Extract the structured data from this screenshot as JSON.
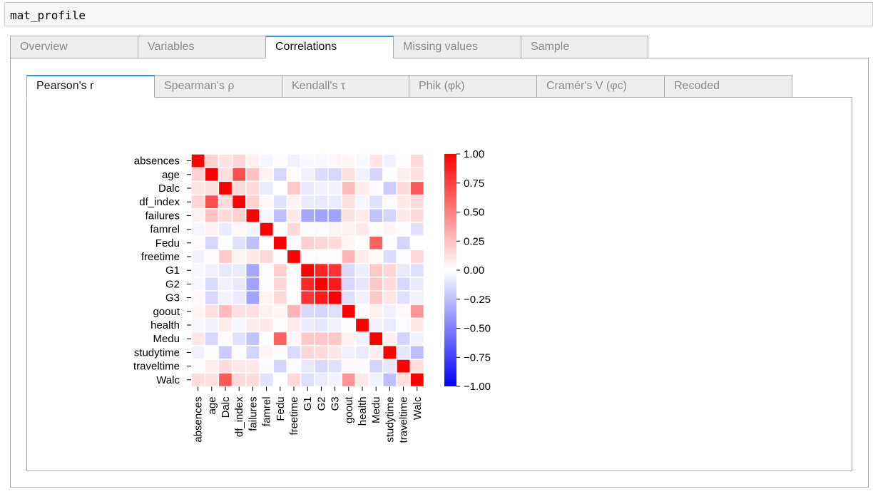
{
  "code_cell": {
    "text": "mat_profile"
  },
  "outer_tabs": [
    {
      "label": "Overview",
      "active": false
    },
    {
      "label": "Variables",
      "active": false
    },
    {
      "label": "Correlations",
      "active": true
    },
    {
      "label": "Missing values",
      "active": false
    },
    {
      "label": "Sample",
      "active": false
    }
  ],
  "inner_tabs": [
    {
      "label": "Pearson's r",
      "active": true
    },
    {
      "label": "Spearman's ρ",
      "active": false
    },
    {
      "label": "Kendall's τ",
      "active": false
    },
    {
      "label": "Phik (φk)",
      "active": false
    },
    {
      "label": "Cramér's V (φc)",
      "active": false
    },
    {
      "label": "Recoded",
      "active": false
    }
  ],
  "chart_data": {
    "type": "heatmap",
    "title": "",
    "variables": [
      "absences",
      "age",
      "Dalc",
      "df_index",
      "failures",
      "famrel",
      "Fedu",
      "freetime",
      "G1",
      "G2",
      "G3",
      "goout",
      "health",
      "Medu",
      "studytime",
      "traveltime",
      "Walc"
    ],
    "colorbar": {
      "ticks": [
        1.0,
        0.75,
        0.5,
        0.25,
        0.0,
        -0.25,
        -0.5,
        -0.75,
        -1.0
      ],
      "tick_labels": [
        "1.00",
        "0.75",
        "0.50",
        "0.25",
        "0.00",
        "−0.25",
        "−0.50",
        "−0.75",
        "−1.00"
      ],
      "range": [
        -1,
        1
      ],
      "colormap": "bwr",
      "low_color": "#0000ff",
      "mid_color": "#ffffff",
      "high_color": "#ff0000"
    },
    "grid_lines": "white",
    "values": [
      [
        1.0,
        0.18,
        0.11,
        0.17,
        0.06,
        -0.04,
        0.02,
        -0.06,
        -0.03,
        -0.03,
        0.03,
        0.04,
        -0.03,
        0.1,
        -0.06,
        -0.01,
        0.14
      ],
      [
        0.18,
        1.0,
        0.13,
        0.7,
        0.24,
        0.05,
        -0.16,
        0.02,
        -0.06,
        -0.14,
        -0.16,
        0.13,
        -0.06,
        -0.16,
        -0.0,
        0.07,
        0.12
      ],
      [
        0.11,
        0.13,
        1.0,
        0.14,
        0.14,
        -0.08,
        0.0,
        0.21,
        -0.09,
        -0.06,
        -0.05,
        0.27,
        0.08,
        -0.02,
        -0.2,
        0.14,
        0.65
      ],
      [
        0.17,
        0.7,
        0.14,
        1.0,
        0.18,
        0.03,
        -0.12,
        0.05,
        -0.08,
        -0.09,
        -0.08,
        0.12,
        -0.04,
        -0.12,
        -0.02,
        0.09,
        0.14
      ],
      [
        0.06,
        0.24,
        0.14,
        0.18,
        1.0,
        -0.04,
        -0.25,
        0.09,
        -0.35,
        -0.36,
        -0.36,
        0.12,
        0.08,
        -0.24,
        -0.17,
        0.09,
        0.14
      ],
      [
        -0.04,
        0.05,
        -0.08,
        0.03,
        -0.04,
        1.0,
        -0.0,
        0.15,
        0.02,
        -0.02,
        0.05,
        0.06,
        0.09,
        -0.0,
        0.04,
        -0.02,
        -0.11
      ],
      [
        0.02,
        -0.16,
        0.0,
        -0.12,
        -0.25,
        -0.0,
        1.0,
        -0.01,
        0.19,
        0.16,
        0.15,
        0.04,
        0.01,
        0.62,
        -0.01,
        -0.17,
        -0.0
      ],
      [
        -0.06,
        0.02,
        0.21,
        0.05,
        0.09,
        0.15,
        -0.01,
        1.0,
        0.01,
        -0.01,
        0.01,
        0.29,
        0.08,
        0.03,
        -0.14,
        -0.02,
        0.15
      ],
      [
        -0.03,
        -0.06,
        -0.09,
        -0.08,
        -0.35,
        0.02,
        0.19,
        0.01,
        1.0,
        0.85,
        0.8,
        -0.15,
        -0.07,
        0.21,
        0.16,
        -0.09,
        -0.13
      ],
      [
        -0.03,
        -0.14,
        -0.06,
        -0.09,
        -0.36,
        -0.02,
        0.16,
        -0.01,
        0.85,
        1.0,
        0.9,
        -0.16,
        -0.1,
        0.22,
        0.14,
        -0.15,
        -0.08
      ],
      [
        0.03,
        -0.16,
        -0.05,
        -0.08,
        -0.36,
        0.05,
        0.15,
        0.01,
        0.8,
        0.9,
        1.0,
        -0.13,
        -0.06,
        0.22,
        0.1,
        -0.12,
        -0.05
      ],
      [
        0.04,
        0.13,
        0.27,
        0.12,
        0.12,
        0.06,
        0.04,
        0.29,
        -0.15,
        -0.16,
        -0.13,
        1.0,
        -0.01,
        0.06,
        -0.06,
        0.03,
        0.42
      ],
      [
        -0.03,
        -0.06,
        0.08,
        -0.04,
        0.08,
        0.09,
        0.01,
        0.08,
        -0.07,
        -0.1,
        -0.06,
        -0.01,
        1.0,
        -0.05,
        -0.08,
        -0.02,
        0.09
      ],
      [
        0.1,
        -0.16,
        -0.02,
        -0.12,
        -0.24,
        -0.0,
        0.62,
        0.03,
        0.21,
        0.22,
        0.22,
        0.06,
        -0.05,
        1.0,
        0.06,
        -0.17,
        -0.05
      ],
      [
        -0.06,
        -0.0,
        -0.2,
        -0.02,
        -0.17,
        0.04,
        -0.01,
        -0.14,
        0.16,
        0.14,
        0.1,
        -0.06,
        -0.08,
        0.06,
        1.0,
        -0.1,
        -0.25
      ],
      [
        -0.01,
        0.07,
        0.14,
        0.09,
        0.09,
        -0.02,
        -0.17,
        -0.02,
        -0.09,
        -0.15,
        -0.12,
        0.03,
        -0.02,
        -0.17,
        -0.1,
        1.0,
        0.13
      ],
      [
        0.14,
        0.12,
        0.65,
        0.14,
        0.14,
        -0.11,
        -0.0,
        0.15,
        -0.13,
        -0.08,
        -0.05,
        0.42,
        0.09,
        -0.05,
        -0.25,
        0.13,
        1.0
      ]
    ]
  }
}
